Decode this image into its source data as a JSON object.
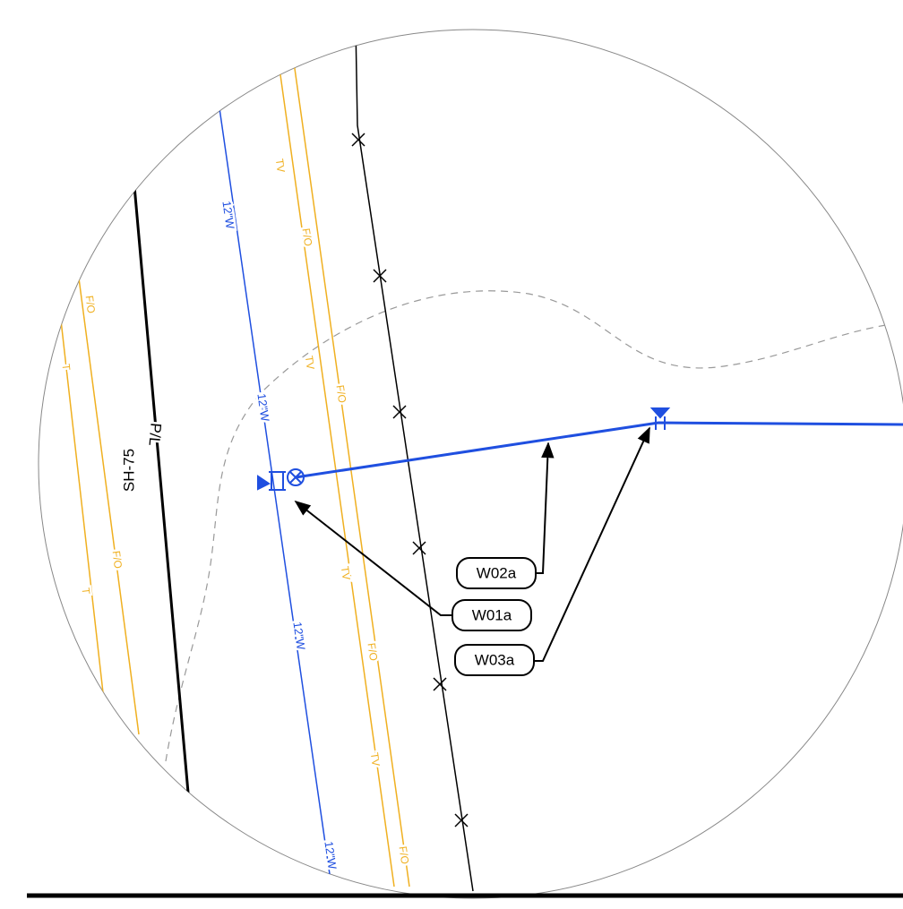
{
  "water_labels": [
    "12\"W",
    "12\"W",
    "12\"W",
    "12\"W"
  ],
  "tv_labels": [
    "TV",
    "TV",
    "TV",
    "TV"
  ],
  "fo_labels": [
    "F/O",
    "F/O",
    "F/O",
    "F/O"
  ],
  "left_fo_labels": [
    "F/O",
    "F/O"
  ],
  "left_t_labels": [
    "T",
    "T"
  ],
  "road": "SH-75",
  "property_line": "P/L",
  "callouts": [
    "W02a",
    "W01a",
    "W03a"
  ]
}
